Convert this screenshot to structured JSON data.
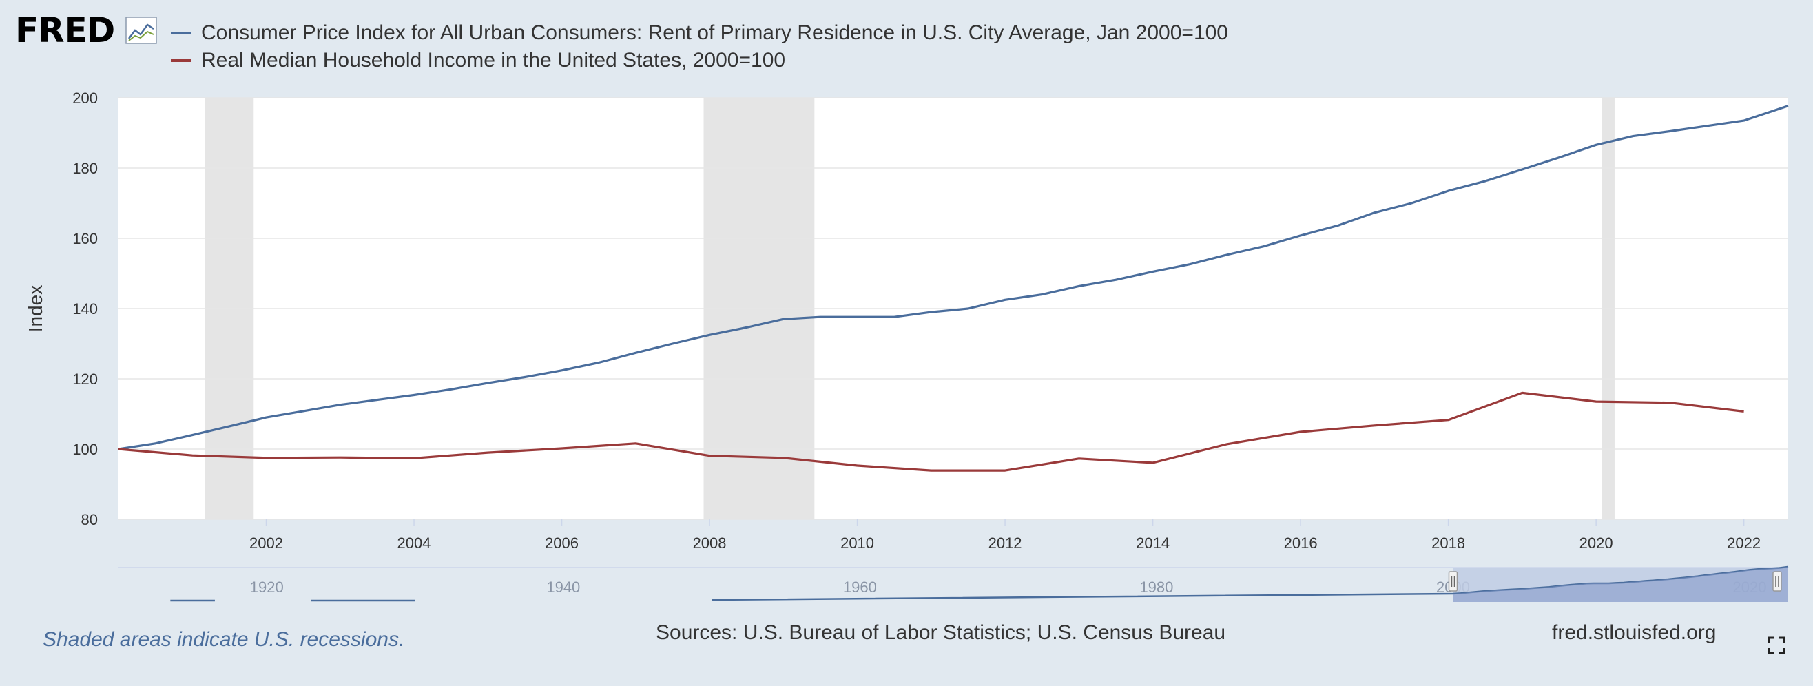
{
  "brand": "FRED",
  "icons": {
    "logo_graph": "line-graph-icon",
    "fullscreen": "fullscreen-icon"
  },
  "colors": {
    "background": "#e1e9f0",
    "rent": "#4a6d9c",
    "income": "#9a3a3a",
    "recession": "#e5e5e5",
    "navigator_selection": "#bfcde4",
    "navigator_fill": "#7f96c6"
  },
  "footer": {
    "note": "Shaded areas indicate U.S. recessions.",
    "sources": "Sources: U.S. Bureau of Labor Statistics; U.S. Census Bureau",
    "site": "fred.stlouisfed.org"
  },
  "navigator": {
    "ticks": [
      "1920",
      "1940",
      "1960",
      "1980",
      "2000",
      "2020"
    ],
    "selected_range": [
      2000,
      2022.6
    ]
  },
  "chart_data": {
    "type": "line",
    "ylabel": "Index",
    "ylim": [
      80,
      200
    ],
    "xlim": [
      2000.0,
      2022.6
    ],
    "y_ticks": [
      "80",
      "100",
      "120",
      "140",
      "160",
      "180",
      "200"
    ],
    "x_ticks": [
      "2002",
      "2004",
      "2006",
      "2008",
      "2010",
      "2012",
      "2014",
      "2016",
      "2018",
      "2020",
      "2022"
    ],
    "grid": true,
    "legend_position": "top-left",
    "recessions": [
      [
        2001.17,
        2001.83
      ],
      [
        2007.92,
        2009.42
      ],
      [
        2020.08,
        2020.25
      ]
    ],
    "series": [
      {
        "name": "Consumer Price Index for All Urban Consumers: Rent of Primary Residence in U.S. City Average, Jan 2000=100",
        "color": "#4a6d9c",
        "x": [
          2000,
          2000.5,
          2001,
          2001.5,
          2002,
          2002.5,
          2003,
          2003.5,
          2004,
          2004.5,
          2005,
          2005.5,
          2006,
          2006.5,
          2007,
          2007.5,
          2008,
          2008.5,
          2009,
          2009.5,
          2010,
          2010.5,
          2011,
          2011.5,
          2012,
          2012.5,
          2013,
          2013.5,
          2014,
          2014.5,
          2015,
          2015.5,
          2016,
          2016.5,
          2017,
          2017.5,
          2018,
          2018.5,
          2019,
          2019.5,
          2020,
          2020.5,
          2021,
          2021.5,
          2022,
          2022.6
        ],
        "values": [
          100,
          101.6,
          104,
          106.5,
          109,
          110.8,
          112.6,
          114,
          115.4,
          117,
          118.8,
          120.5,
          122.4,
          124.6,
          127.4,
          130,
          132.5,
          134.6,
          137,
          137.6,
          137.6,
          137.6,
          139,
          140,
          142.5,
          144,
          146.4,
          148.2,
          150.5,
          152.6,
          155.3,
          157.7,
          160.8,
          163.6,
          167.3,
          170,
          173.5,
          176.3,
          179.6,
          183,
          186.6,
          189.1,
          190.5,
          192,
          193.5,
          197.7
        ]
      },
      {
        "name": "Real Median Household Income in the United States, 2000=100",
        "color": "#9a3a3a",
        "x": [
          2000,
          2001,
          2002,
          2003,
          2004,
          2005,
          2006,
          2007,
          2008,
          2009,
          2010,
          2011,
          2012,
          2013,
          2014,
          2015,
          2016,
          2017,
          2018,
          2019,
          2020,
          2021,
          2022
        ],
        "values": [
          100,
          98.2,
          97.5,
          97.6,
          97.4,
          99,
          100.2,
          101.6,
          98.1,
          97.5,
          95.3,
          93.9,
          93.9,
          97.3,
          96.1,
          101.4,
          104.9,
          106.7,
          108.3,
          116,
          113.5,
          113.2,
          110.7
        ]
      }
    ]
  }
}
